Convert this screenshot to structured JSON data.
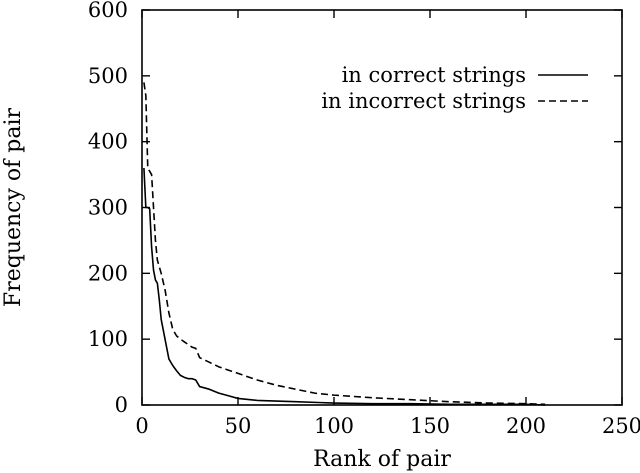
{
  "chart_data": {
    "type": "line",
    "title": "",
    "xlabel": "Rank of pair",
    "ylabel": "Frequency of pair",
    "xlim": [
      0,
      250
    ],
    "ylim": [
      0,
      600
    ],
    "xticks": [
      "0",
      "50",
      "100",
      "150",
      "200",
      "250"
    ],
    "yticks": [
      "0",
      "100",
      "200",
      "300",
      "400",
      "500",
      "600"
    ],
    "grid": false,
    "legend_position": "top-right",
    "series": [
      {
        "name": "in correct strings",
        "style": "solid",
        "color": "#000000",
        "x": [
          1,
          2,
          3,
          4,
          5,
          6,
          7,
          8,
          9,
          10,
          12,
          14,
          16,
          18,
          20,
          22,
          24,
          26,
          28,
          30,
          35,
          40,
          45,
          50,
          60,
          70,
          80,
          90,
          100,
          120,
          140,
          160,
          180,
          200,
          210
        ],
        "y": [
          360,
          300,
          300,
          298,
          240,
          205,
          190,
          185,
          160,
          130,
          100,
          70,
          60,
          52,
          45,
          42,
          40,
          40,
          38,
          28,
          24,
          18,
          14,
          10,
          7,
          6,
          5,
          4,
          3,
          2,
          2,
          1,
          1,
          1,
          0
        ]
      },
      {
        "name": "in incorrect strings",
        "style": "dashed",
        "color": "#000000",
        "x": [
          1,
          2,
          3,
          4,
          5,
          6,
          7,
          8,
          9,
          10,
          12,
          14,
          16,
          18,
          20,
          22,
          24,
          26,
          28,
          30,
          35,
          40,
          50,
          60,
          70,
          80,
          90,
          100,
          120,
          140,
          160,
          180,
          200,
          210
        ],
        "y": [
          490,
          470,
          360,
          355,
          350,
          300,
          250,
          220,
          210,
          200,
          175,
          140,
          115,
          105,
          100,
          96,
          92,
          88,
          86,
          72,
          65,
          58,
          48,
          38,
          30,
          24,
          18,
          15,
          11,
          8,
          5,
          3,
          2,
          1
        ]
      }
    ]
  }
}
